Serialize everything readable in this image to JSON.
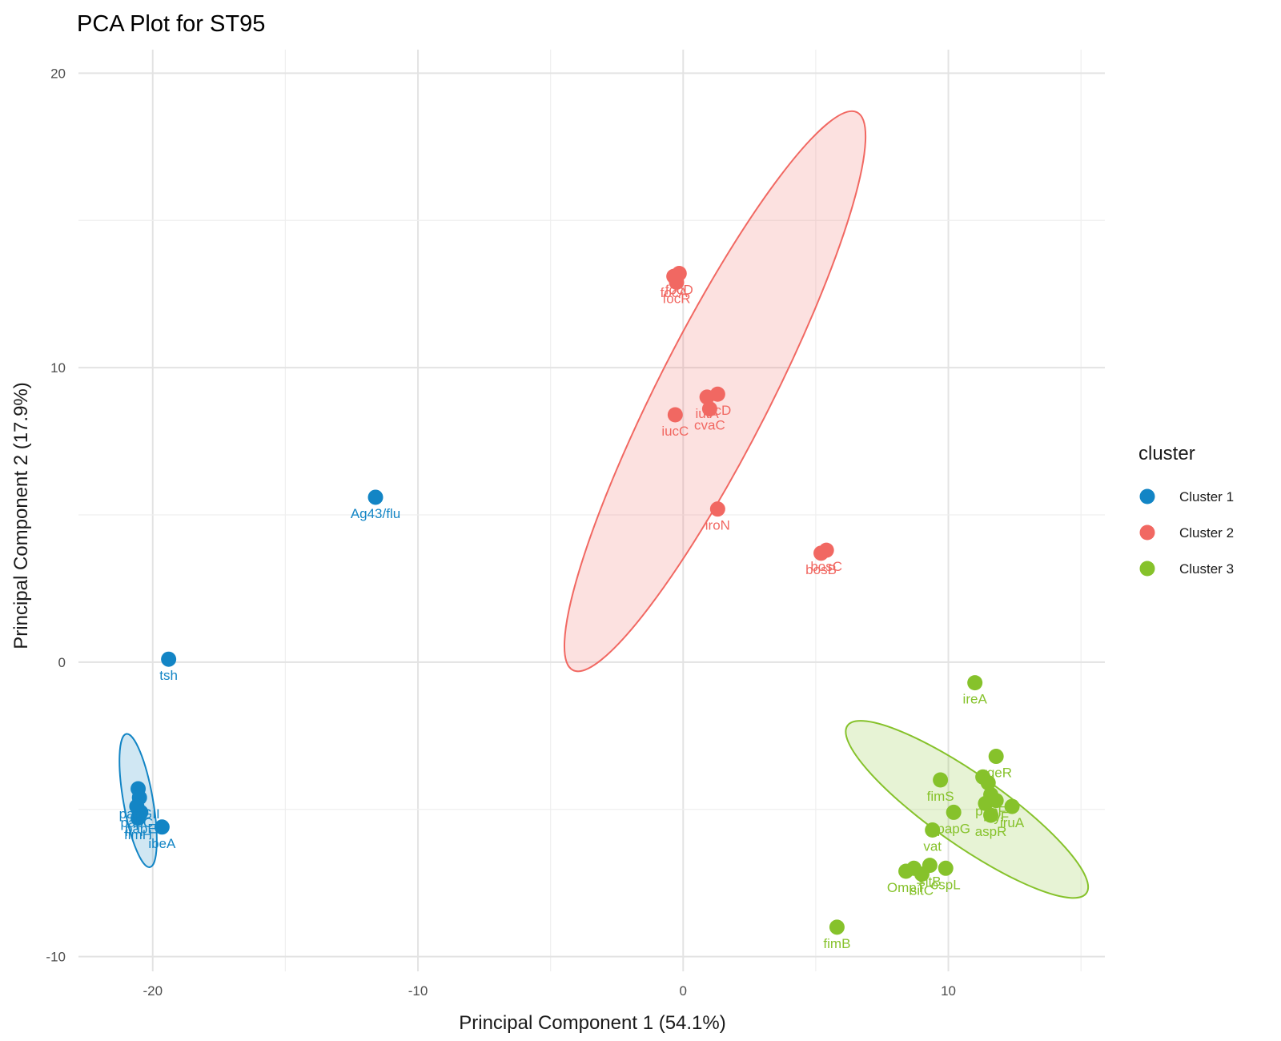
{
  "chart_data": {
    "type": "scatter",
    "title": "PCA Plot for ST95",
    "xlabel": "Principal Component 1 (54.1%)",
    "ylabel": "Principal Component 2 (17.9%)",
    "xlim": [
      -22.8,
      15.9
    ],
    "ylim": [
      -10.5,
      20.8
    ],
    "x_ticks": [
      -20,
      -10,
      0,
      10
    ],
    "y_ticks": [
      -10,
      0,
      10,
      20
    ],
    "grid": true,
    "legend": {
      "title": "cluster",
      "position": "right",
      "entries": [
        "Cluster 1",
        "Cluster 2",
        "Cluster 3"
      ]
    },
    "series": [
      {
        "name": "Cluster 1",
        "color": "#1385C5",
        "ellipse": {
          "cx": -20.55,
          "cy": -4.7,
          "rx": 2.55,
          "ry": 0.5,
          "angle_deg": 100
        },
        "points": [
          {
            "x": -11.6,
            "y": 5.6,
            "label": "Ag43/flu"
          },
          {
            "x": -19.4,
            "y": 0.1,
            "label": "tsh"
          },
          {
            "x": -20.55,
            "y": -4.3,
            "label": ""
          },
          {
            "x": -20.5,
            "y": -4.6,
            "label": "papGII"
          },
          {
            "x": -20.6,
            "y": -4.9,
            "label": "papC"
          },
          {
            "x": -20.45,
            "y": -5.1,
            "label": "papE"
          },
          {
            "x": -20.55,
            "y": -5.3,
            "label": "fimH"
          },
          {
            "x": -19.65,
            "y": -5.6,
            "label": "ibeA"
          }
        ]
      },
      {
        "name": "Cluster 2",
        "color": "#F16862",
        "ellipse": {
          "cx": 1.2,
          "cy": 9.2,
          "rx": 11.8,
          "ry": 1.9,
          "angle_deg": 63
        },
        "points": [
          {
            "x": -0.35,
            "y": 13.1,
            "label": "focA"
          },
          {
            "x": -0.15,
            "y": 13.2,
            "label": "focD"
          },
          {
            "x": -0.25,
            "y": 12.9,
            "label": "focR"
          },
          {
            "x": 0.9,
            "y": 9.0,
            "label": "iutA"
          },
          {
            "x": 1.3,
            "y": 9.1,
            "label": "iucD"
          },
          {
            "x": 1.0,
            "y": 8.6,
            "label": "cvaC"
          },
          {
            "x": -0.3,
            "y": 8.4,
            "label": "iucC"
          },
          {
            "x": 1.3,
            "y": 5.2,
            "label": "iroN"
          },
          {
            "x": 5.2,
            "y": 3.7,
            "label": "bosB"
          },
          {
            "x": 5.4,
            "y": 3.8,
            "label": "bosC"
          }
        ]
      },
      {
        "name": "Cluster 3",
        "color": "#86C22B",
        "ellipse": {
          "cx": 10.7,
          "cy": -5.0,
          "rx": 5.5,
          "ry": 1.2,
          "angle_deg": -35
        },
        "points": [
          {
            "x": 11.0,
            "y": -0.7,
            "label": "ireA"
          },
          {
            "x": 11.8,
            "y": -3.2,
            "label": "yqeR"
          },
          {
            "x": 11.3,
            "y": -3.9,
            "label": ""
          },
          {
            "x": 11.5,
            "y": -4.1,
            "label": ""
          },
          {
            "x": 9.7,
            "y": -4.0,
            "label": "fimS"
          },
          {
            "x": 11.6,
            "y": -4.5,
            "label": "papF"
          },
          {
            "x": 11.8,
            "y": -4.7,
            "label": "hlyF"
          },
          {
            "x": 11.4,
            "y": -4.8,
            "label": ""
          },
          {
            "x": 12.4,
            "y": -4.9,
            "label": "iruA"
          },
          {
            "x": 10.2,
            "y": -5.1,
            "label": "papG"
          },
          {
            "x": 11.6,
            "y": -5.2,
            "label": "aspR"
          },
          {
            "x": 9.4,
            "y": -5.7,
            "label": "vat"
          },
          {
            "x": 9.3,
            "y": -6.9,
            "label": "sitB"
          },
          {
            "x": 8.7,
            "y": -7.0,
            "label": ""
          },
          {
            "x": 9.9,
            "y": -7.0,
            "label": "ospL"
          },
          {
            "x": 8.4,
            "y": -7.1,
            "label": "OmpT"
          },
          {
            "x": 9.0,
            "y": -7.2,
            "label": "sitC"
          },
          {
            "x": 5.8,
            "y": -9.0,
            "label": "fimB"
          }
        ]
      }
    ]
  }
}
